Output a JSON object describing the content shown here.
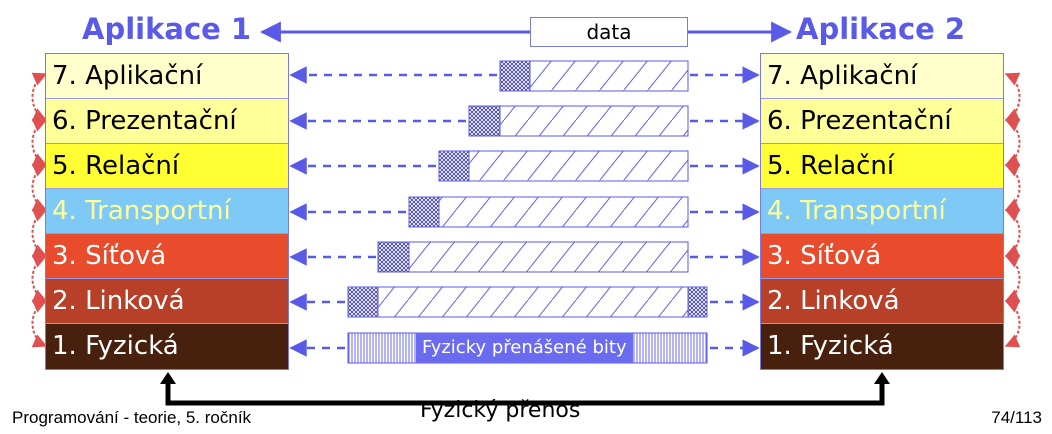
{
  "titles": {
    "app1": "Aplikace 1",
    "app2": "Aplikace 2"
  },
  "data_label": "data",
  "layers": [
    {
      "label": "7. Aplikační",
      "bg": "#ffffcc",
      "fg": "#000000"
    },
    {
      "label": "6. Prezentační",
      "bg": "#ffff99",
      "fg": "#000000"
    },
    {
      "label": "5. Relační",
      "bg": "#ffff33",
      "fg": "#000000"
    },
    {
      "label": "4. Transportní",
      "bg": "#7fc9f6",
      "fg": "#ffff99"
    },
    {
      "label": "3. Síťová",
      "bg": "#e84c2c",
      "fg": "#ffffff"
    },
    {
      "label": "2. Linková",
      "bg": "#b84028",
      "fg": "#ffffff"
    },
    {
      "label": "1. Fyzická",
      "bg": "#47200e",
      "fg": "#ffffff"
    }
  ],
  "bits_label": "Fyzicky přenášené bity",
  "physical_transfer": "Fyzický přenos",
  "footer": {
    "left": "Programování - teorie, 5. ročník",
    "right": "74/113"
  },
  "colors": {
    "arrow": "#5a5ae8",
    "side_arrow": "#e05050",
    "phys_line": "#000000"
  }
}
